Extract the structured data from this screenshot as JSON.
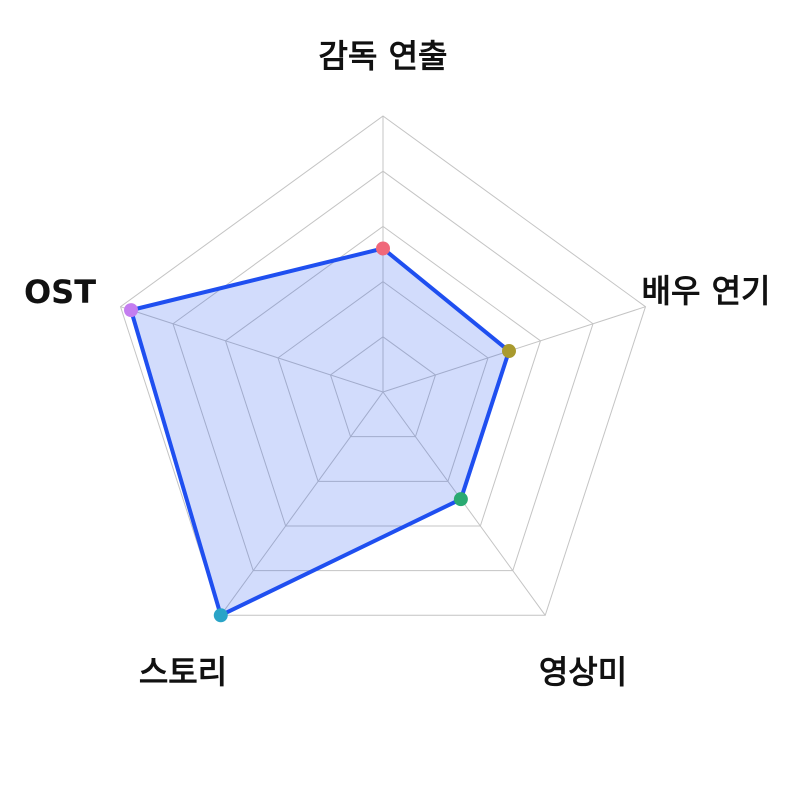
{
  "chart_data": {
    "type": "radar",
    "axes": [
      "감독 연출",
      "배우 연기",
      "영상미",
      "스토리",
      "OST"
    ],
    "range": [
      0,
      5
    ],
    "rings": 5,
    "grid": true,
    "legend": "none",
    "series": [
      {
        "values": [
          2.6,
          2.4,
          2.4,
          5.0,
          4.8
        ],
        "color": "#1f4ff0"
      }
    ],
    "point_colors": [
      "#f0687a",
      "#a99a2e",
      "#2aaa72",
      "#2aa4c7",
      "#c47df0"
    ]
  }
}
